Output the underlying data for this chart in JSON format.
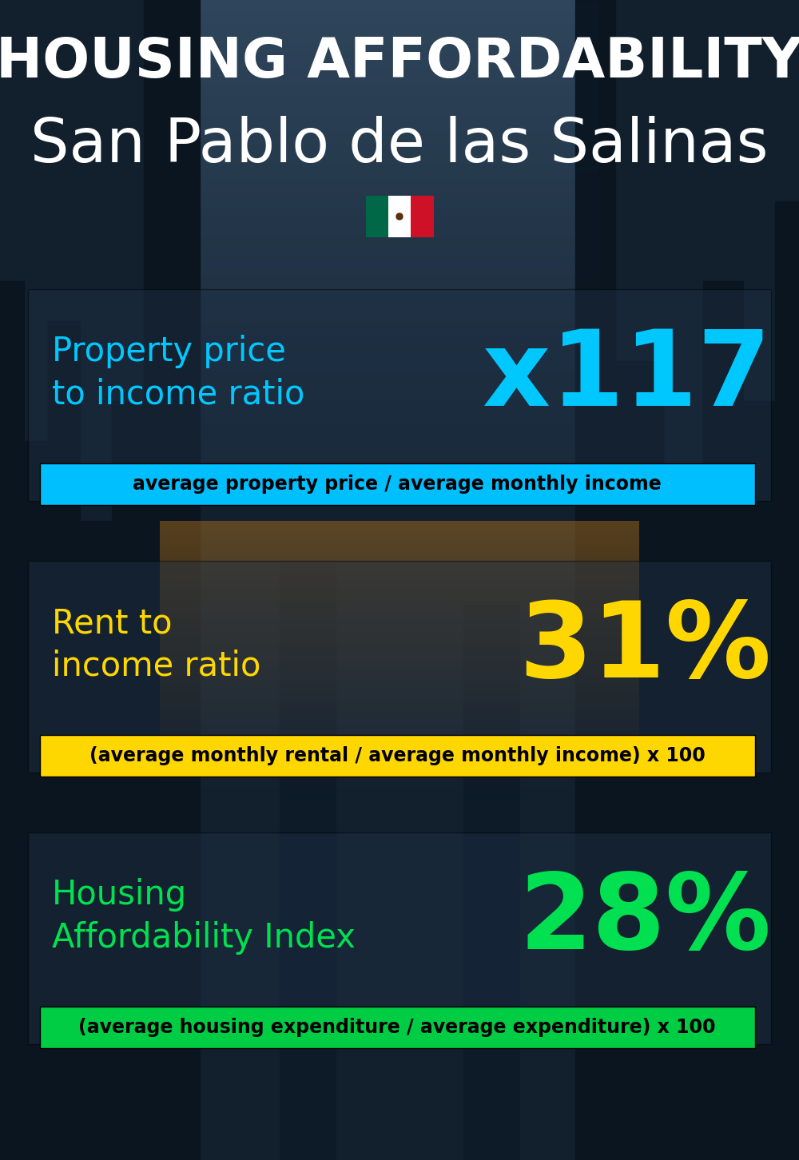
{
  "title_line1": "HOUSING AFFORDABILITY",
  "title_line2": "San Pablo de las Salinas",
  "background_color": "#1a2535",
  "section1_label": "Property price\nto income ratio",
  "section1_value": "x117",
  "section1_label_color": "#00c8ff",
  "section1_value_color": "#00c8ff",
  "section1_formula": "average property price / average monthly income",
  "section1_formula_bg": "#00bfff",
  "section2_label": "Rent to\nincome ratio",
  "section2_value": "31%",
  "section2_label_color": "#ffd700",
  "section2_value_color": "#ffd700",
  "section2_formula": "(average monthly rental / average monthly income) x 100",
  "section2_formula_bg": "#ffd700",
  "section3_label": "Housing\nAffordability Index",
  "section3_value": "28%",
  "section3_label_color": "#00e050",
  "section3_value_color": "#00e050",
  "section3_formula": "(average housing expenditure / average expenditure) x 100",
  "section3_formula_bg": "#00cc44",
  "title_line1_color": "#ffffff",
  "title_line2_color": "#ffffff",
  "title_line1_fontsize": 50,
  "title_line2_fontsize": 55,
  "section_label_fontsize": 30,
  "section_value_fontsize": 95,
  "section_formula_fontsize": 17,
  "overlay_alpha": 0.45,
  "flag_green": "#006847",
  "flag_white": "#ffffff",
  "flag_red": "#ce1126"
}
